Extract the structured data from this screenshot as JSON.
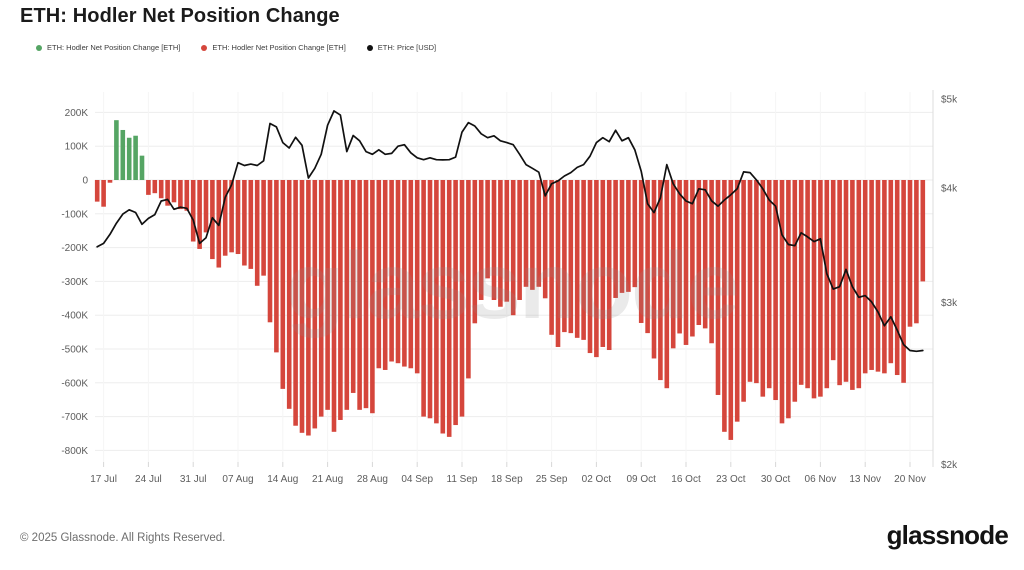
{
  "header": {
    "title": "ETH: Hodler Net Position Change"
  },
  "legend": {
    "items": [
      {
        "label": "ETH: Hodler Net Position Change [ETH]",
        "color": "#55a564",
        "dot_icon": "circle-dot-icon"
      },
      {
        "label": "ETH: Hodler Net Position Change [ETH]",
        "color": "#d5463c",
        "dot_icon": "circle-dot-icon"
      },
      {
        "label": "ETH: Price [USD]",
        "color": "#111111",
        "dot_icon": "circle-dot-icon"
      }
    ]
  },
  "watermark": "glassnode",
  "footer": {
    "copyright": "© 2025 Glassnode. All Rights Reserved.",
    "logo_text": "glassnode"
  },
  "chart_data": {
    "type": "bar",
    "title": "ETH: Hodler Net Position Change",
    "grid": true,
    "legend_position": "top-left",
    "x_tick_labels": [
      "17 Jul",
      "24 Jul",
      "31 Jul",
      "07 Aug",
      "14 Aug",
      "21 Aug",
      "28 Aug",
      "04 Sep",
      "11 Sep",
      "18 Sep",
      "25 Sep",
      "02 Oct",
      "09 Oct",
      "16 Oct",
      "23 Oct",
      "30 Oct",
      "06 Nov",
      "13 Nov",
      "20 Nov"
    ],
    "left_axis": {
      "tick_labels": [
        "200K",
        "100K",
        "0",
        "-100K",
        "-200K",
        "-300K",
        "-400K",
        "-500K",
        "-600K",
        "-700K",
        "-800K"
      ],
      "tick_values": [
        200,
        100,
        0,
        -100,
        -200,
        -300,
        -400,
        -500,
        -600,
        -700,
        -800
      ],
      "unit": "thousand ETH",
      "range": [
        -800,
        200
      ]
    },
    "right_axis": {
      "tick_labels": [
        "$5k",
        "$4k",
        "$3k",
        "$2k"
      ],
      "tick_values": [
        5000,
        4000,
        3000,
        2000
      ],
      "scale": "log",
      "range": [
        2000,
        5000
      ]
    },
    "series": [
      {
        "name": "ETH: Hodler Net Position Change [ETH]",
        "type": "bar",
        "axis": "left",
        "unit": "thousand ETH",
        "positive_color": "#55a564",
        "negative_color": "#d5463c",
        "values": [
          -64,
          -79,
          -8,
          177,
          148,
          125,
          131,
          72,
          -44,
          -39,
          -54,
          -76,
          -66,
          -86,
          -91,
          -182,
          -204,
          -155,
          -234,
          -259,
          -224,
          -214,
          -219,
          -253,
          -263,
          -313,
          -283,
          -421,
          -510,
          -618,
          -677,
          -727,
          -748,
          -756,
          -735,
          -700,
          -680,
          -745,
          -710,
          -680,
          -630,
          -680,
          -675,
          -690,
          -557,
          -562,
          -537,
          -542,
          -552,
          -557,
          -572,
          -700,
          -705,
          -720,
          -750,
          -760,
          -725,
          -700,
          -587,
          -424,
          -355,
          -291,
          -355,
          -375,
          -360,
          -400,
          -355,
          -316,
          -325,
          -316,
          -350,
          -458,
          -494,
          -450,
          -453,
          -467,
          -473,
          -512,
          -524,
          -494,
          -503,
          -349,
          -334,
          -331,
          -317,
          -423,
          -453,
          -528,
          -592,
          -616,
          -498,
          -454,
          -488,
          -463,
          -429,
          -439,
          -483,
          -636,
          -745,
          -769,
          -715,
          -656,
          -597,
          -601,
          -641,
          -616,
          -651,
          -720,
          -705,
          -656,
          -606,
          -616,
          -646,
          -641,
          -616,
          -533,
          -607,
          -597,
          -621,
          -616,
          -572,
          -562,
          -567,
          -572,
          -542,
          -577,
          -600,
          -434,
          -424,
          -300
        ]
      },
      {
        "name": "ETH: Price [USD]",
        "type": "line",
        "axis": "right",
        "unit": "USD",
        "color": "#111111",
        "values": [
          3450,
          3480,
          3560,
          3660,
          3745,
          3785,
          3760,
          3650,
          3705,
          3740,
          3870,
          3885,
          3790,
          3810,
          3800,
          3690,
          3480,
          3530,
          3710,
          3640,
          3905,
          4030,
          4260,
          4230,
          4245,
          4230,
          4280,
          4700,
          4660,
          4480,
          4420,
          4540,
          4450,
          4100,
          4200,
          4350,
          4680,
          4850,
          4800,
          4380,
          4560,
          4500,
          4380,
          4350,
          4400,
          4350,
          4360,
          4440,
          4456,
          4367,
          4313,
          4292,
          4313,
          4292,
          4290,
          4292,
          4320,
          4600,
          4710,
          4670,
          4580,
          4535,
          4557,
          4500,
          4480,
          4456,
          4350,
          4240,
          4200,
          4160,
          3920,
          4040,
          4070,
          4120,
          4155,
          4210,
          4240,
          4330,
          4480,
          4535,
          4490,
          4620,
          4500,
          4535,
          4400,
          4170,
          3844,
          3759,
          3900,
          4240,
          4040,
          3940,
          3870,
          3844,
          3990,
          3980,
          3872,
          3820,
          3880,
          3930,
          3990,
          4163,
          4155,
          4080,
          3990,
          3880,
          3820,
          3555,
          3470,
          3460,
          3573,
          3537,
          3495,
          3520,
          3225,
          3103,
          3122,
          3260,
          3122,
          3040,
          3053,
          3005,
          2930,
          2830,
          2895,
          2800,
          2700,
          2660,
          2655,
          2660
        ]
      }
    ]
  }
}
